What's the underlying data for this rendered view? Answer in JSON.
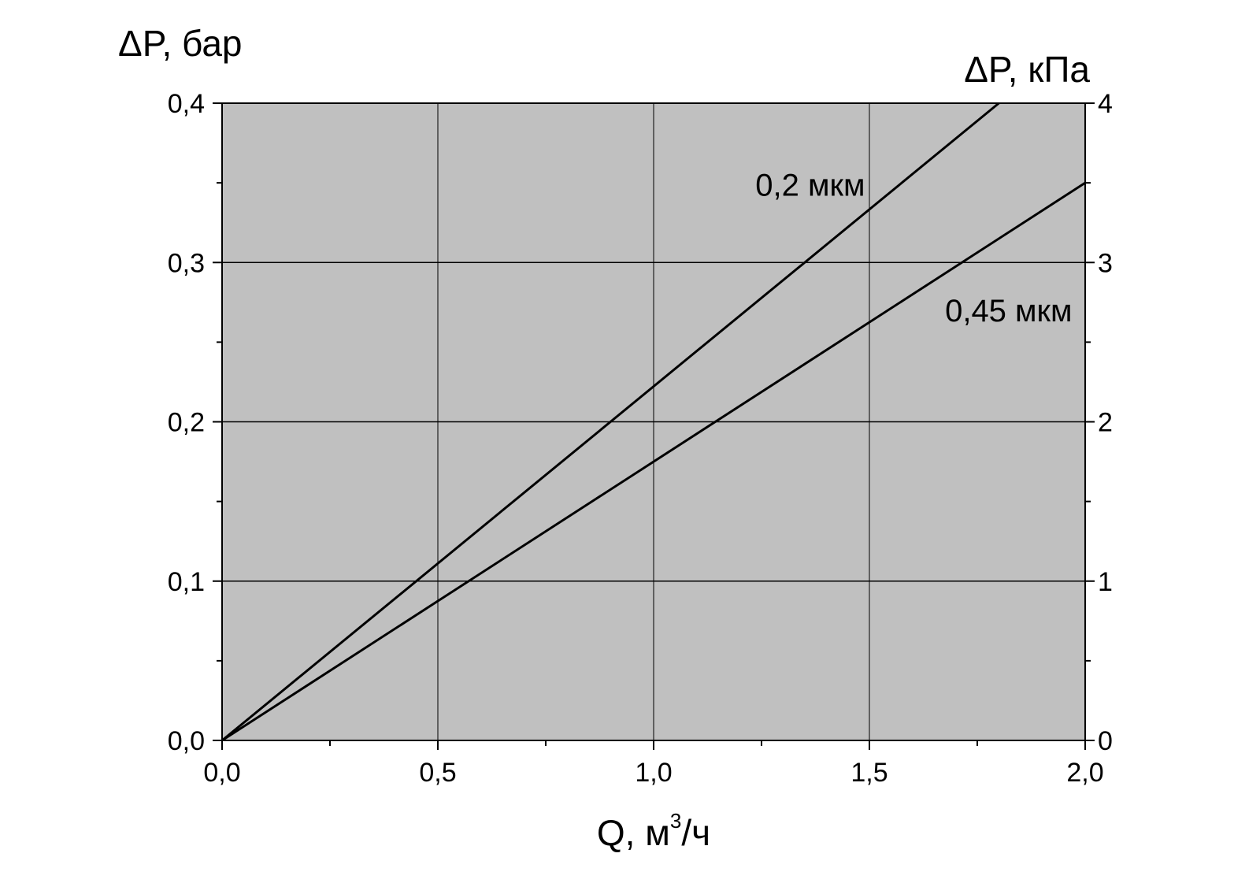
{
  "chart_data": {
    "type": "line",
    "x": [
      0.0,
      2.0
    ],
    "xlim": [
      0.0,
      2.0
    ],
    "ylim": [
      0.0,
      0.4
    ],
    "y2lim": [
      0,
      4
    ],
    "xlabel": "Q, м",
    "xlabel_sup": "3",
    "xlabel_tail": "/ч",
    "ylabel": "ΔP, бар",
    "y2label": "ΔP, кПа",
    "x_ticks": [
      {
        "value": 0.0,
        "label": "0,0"
      },
      {
        "value": 0.5,
        "label": "0,5"
      },
      {
        "value": 1.0,
        "label": "1,0"
      },
      {
        "value": 1.5,
        "label": "1,5"
      },
      {
        "value": 2.0,
        "label": "2,0"
      }
    ],
    "y_ticks": [
      {
        "value": 0.0,
        "label": "0,0"
      },
      {
        "value": 0.1,
        "label": "0,1"
      },
      {
        "value": 0.2,
        "label": "0,2"
      },
      {
        "value": 0.3,
        "label": "0,3"
      },
      {
        "value": 0.4,
        "label": "0,4"
      }
    ],
    "y2_ticks": [
      {
        "value": 0,
        "label": "0"
      },
      {
        "value": 1,
        "label": "1"
      },
      {
        "value": 2,
        "label": "2"
      },
      {
        "value": 3,
        "label": "3"
      },
      {
        "value": 4,
        "label": "4"
      }
    ],
    "series": [
      {
        "name": "0,2 мкм",
        "x": [
          0.0,
          1.8
        ],
        "values": [
          0.0,
          0.4
        ],
        "label_at": {
          "x": 1.49,
          "y": 0.342
        }
      },
      {
        "name": "0,45 мкм",
        "x": [
          0.0,
          2.0
        ],
        "values": [
          0.0,
          0.35
        ],
        "label_at": {
          "x": 1.97,
          "y": 0.263
        }
      }
    ],
    "grid": true,
    "plot_background": "#c0c0c0",
    "line_color": "#000000"
  }
}
